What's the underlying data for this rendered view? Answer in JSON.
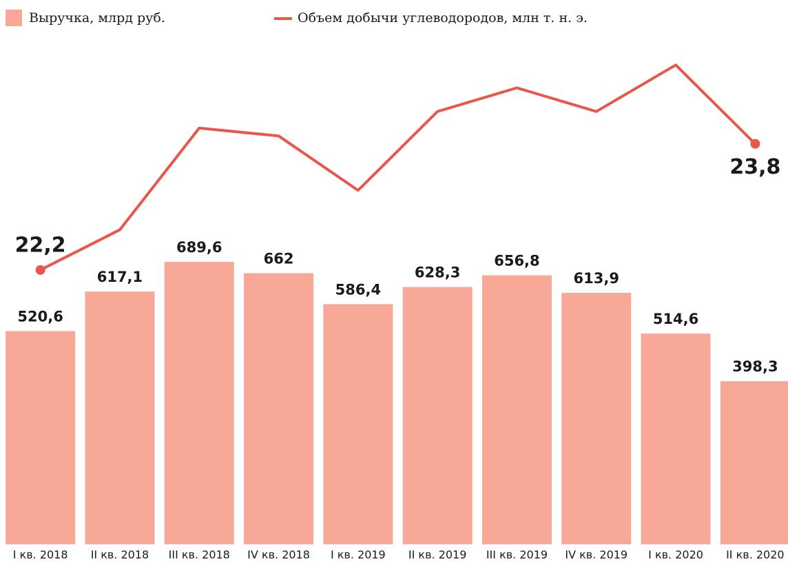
{
  "chart_data": {
    "type": "bar",
    "categories": [
      "I кв. 2018",
      "II кв. 2018",
      "III кв. 2018",
      "IV кв. 2018",
      "I кв. 2019",
      "II кв. 2019",
      "III кв. 2019",
      "IV кв. 2019",
      "I кв. 2020",
      "II кв. 2020"
    ],
    "series": [
      {
        "name": "Выручка,  млрд руб.",
        "type": "bar",
        "color": "#f7a896",
        "values": [
          520.6,
          617.1,
          689.6,
          662,
          586.4,
          628.3,
          656.8,
          613.9,
          514.6,
          398.3
        ],
        "value_labels": [
          "520,6",
          "617,1",
          "689,6",
          "662",
          "586,4",
          "628,3",
          "656,8",
          "613,9",
          "514,6",
          "398,3"
        ]
      },
      {
        "name": "Объем добычи углеводородов, млн т. н. э.",
        "type": "line",
        "axis": "y2",
        "color": "#e8574a",
        "values": [
          22.2,
          22.71,
          24.0,
          23.9,
          23.21,
          24.21,
          24.51,
          24.21,
          24.8,
          23.8
        ],
        "value_labels": [
          "22,2",
          null,
          null,
          null,
          null,
          null,
          null,
          null,
          null,
          "23,8"
        ]
      }
    ],
    "ylim": [
      0,
      1228
    ],
    "y2lim": [
      18.72,
      25.1
    ]
  }
}
